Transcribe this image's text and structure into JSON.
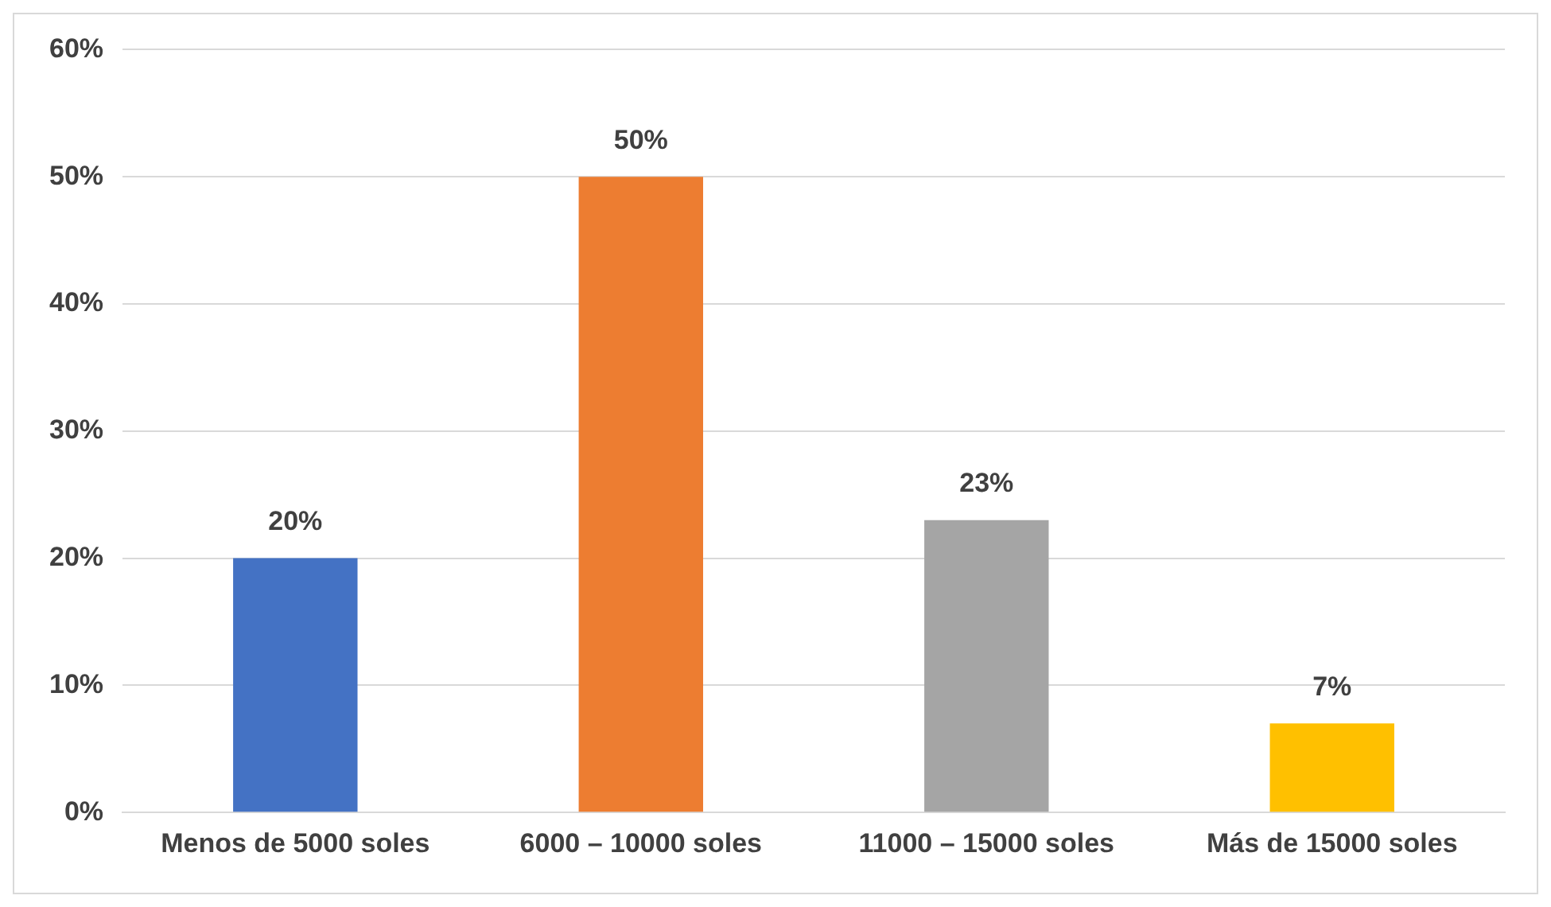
{
  "chart_data": {
    "type": "bar",
    "categories": [
      "Menos de 5000 soles",
      "6000 – 10000 soles",
      "11000 – 15000 soles",
      "Más de 15000 soles"
    ],
    "values": [
      20,
      50,
      23,
      7
    ],
    "colors": [
      "#4472c4",
      "#ed7d31",
      "#a5a5a5",
      "#ffc000"
    ],
    "ylim": [
      0,
      60
    ],
    "yticks": [
      {
        "value": 0,
        "label": "0%"
      },
      {
        "value": 10,
        "label": "10%"
      },
      {
        "value": 20,
        "label": "20%"
      },
      {
        "value": 30,
        "label": "30%"
      },
      {
        "value": 40,
        "label": "40%"
      },
      {
        "value": 50,
        "label": "50%"
      },
      {
        "value": 60,
        "label": "60%"
      }
    ],
    "value_labels": [
      "20%",
      "50%",
      "23%",
      "7%"
    ],
    "grid": "y",
    "legend": false
  }
}
